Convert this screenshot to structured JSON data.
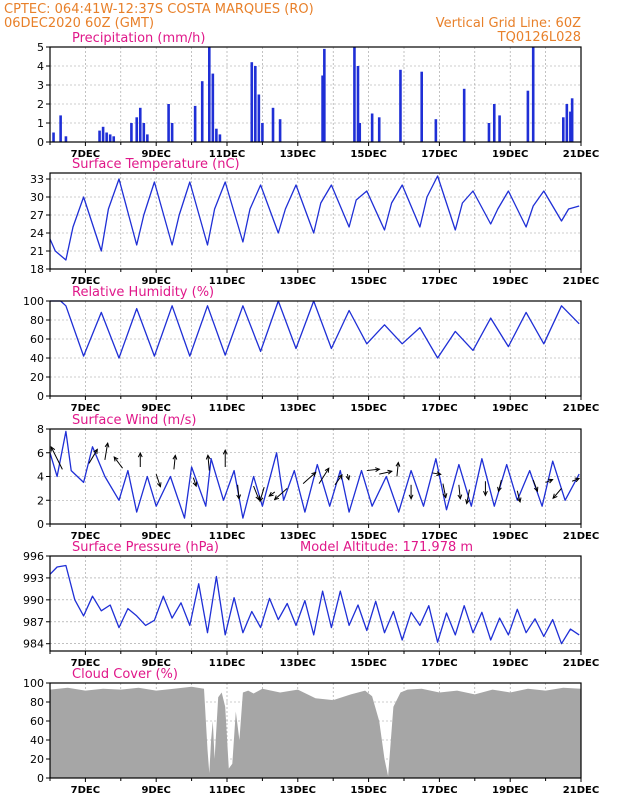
{
  "header": {
    "line1_left": "CPTEC:  064:41W-12:37S  COSTA MARQUES (RO)",
    "line2_left": "06DEC2020 60Z (GMT)",
    "line2_right": "Vertical Grid Line: 60Z",
    "line3_right": "TQ0126L028"
  },
  "colors": {
    "header_text": "#e8802a",
    "panel_title": "#e0188a",
    "line": "#1f2fd6",
    "bar": "#1f2fd6",
    "arrow": "#000000",
    "cloud_fill": "#a6a6a6"
  },
  "chart_data": [
    {
      "type": "bar",
      "title": "Precipitation (mm/h)",
      "ylim": [
        0,
        5
      ],
      "yticks": [
        0,
        1,
        2,
        3,
        4,
        5
      ],
      "xticks": [
        "7DEC",
        "9DEC",
        "11DEC",
        "13DEC",
        "15DEC",
        "17DEC",
        "19DEC",
        "21DEC"
      ],
      "grid": true,
      "series": [
        {
          "x": [
            6.1,
            6.3,
            6.45,
            7.4,
            7.5,
            7.6,
            7.7,
            7.8,
            8.3,
            8.45,
            8.55,
            8.65,
            8.75,
            9.35,
            9.45,
            10.1,
            10.3,
            10.5,
            10.6,
            10.7,
            10.8,
            11.7,
            11.8,
            11.9,
            12.0,
            12.3,
            12.5,
            13.7,
            13.75,
            14.6,
            14.7,
            14.75,
            15.1,
            15.3,
            15.9,
            16.5,
            16.9,
            17.7,
            18.4,
            18.55,
            18.7,
            19.5,
            19.65,
            20.5,
            20.6,
            20.7,
            20.75
          ],
          "values": [
            0.5,
            1.4,
            0.3,
            0.6,
            0.8,
            0.5,
            0.4,
            0.3,
            1.0,
            1.3,
            1.8,
            1.0,
            0.4,
            2.0,
            1.0,
            1.9,
            3.2,
            5.0,
            3.6,
            0.7,
            0.4,
            4.2,
            4.0,
            2.5,
            1.0,
            1.8,
            1.2,
            3.5,
            4.9,
            5.0,
            4.0,
            1.0,
            1.5,
            1.3,
            3.8,
            3.7,
            1.2,
            2.8,
            1.0,
            2.0,
            1.4,
            2.7,
            5.0,
            1.3,
            2.0,
            1.6,
            2.3
          ]
        }
      ]
    },
    {
      "type": "line",
      "title": "Surface Temperature (nC)",
      "ylim": [
        18,
        34
      ],
      "yticks": [
        18,
        21,
        24,
        27,
        30,
        33
      ],
      "xticks": [
        "7DEC",
        "9DEC",
        "11DEC",
        "13DEC",
        "15DEC",
        "17DEC",
        "19DEC",
        "21DEC"
      ],
      "grid": true,
      "series": [
        {
          "x": [
            6.0,
            6.15,
            6.45,
            6.65,
            6.95,
            7.45,
            7.65,
            7.95,
            8.45,
            8.65,
            8.95,
            9.45,
            9.65,
            9.95,
            10.45,
            10.65,
            10.95,
            11.45,
            11.65,
            11.95,
            12.45,
            12.65,
            12.95,
            13.45,
            13.65,
            13.95,
            14.45,
            14.65,
            14.95,
            15.45,
            15.65,
            15.95,
            16.45,
            16.65,
            16.95,
            17.45,
            17.65,
            17.95,
            18.45,
            18.65,
            18.95,
            19.45,
            19.65,
            19.95,
            20.45,
            20.65,
            20.95
          ],
          "values": [
            23,
            21,
            19.5,
            25,
            30,
            21,
            28,
            33,
            22,
            27,
            32.5,
            22,
            27,
            32.5,
            22,
            28,
            32.5,
            22.5,
            28,
            32,
            24,
            28,
            32,
            24,
            29,
            32,
            25,
            29.5,
            31,
            24.5,
            29,
            32,
            25,
            30,
            33.5,
            24.5,
            29,
            31,
            25.5,
            28,
            31,
            25,
            28.5,
            31,
            26,
            28,
            28.5
          ]
        }
      ]
    },
    {
      "type": "line",
      "title": "Relative Humidity (%)",
      "ylim": [
        0,
        100
      ],
      "yticks": [
        0,
        20,
        40,
        60,
        80,
        100
      ],
      "xticks": [
        "7DEC",
        "9DEC",
        "11DEC",
        "13DEC",
        "15DEC",
        "17DEC",
        "19DEC",
        "21DEC"
      ],
      "grid": true,
      "series": [
        {
          "x": [
            6.0,
            6.3,
            6.45,
            6.95,
            7.45,
            7.95,
            8.45,
            8.95,
            9.45,
            9.95,
            10.45,
            10.95,
            11.45,
            11.95,
            12.45,
            12.95,
            13.45,
            13.95,
            14.45,
            14.95,
            15.45,
            15.95,
            16.45,
            16.95,
            17.45,
            17.95,
            18.45,
            18.95,
            19.45,
            19.95,
            20.45,
            20.95
          ],
          "values": [
            100,
            100,
            95,
            42,
            88,
            40,
            92,
            42,
            95,
            42,
            95,
            43,
            95,
            47,
            100,
            50,
            100,
            50,
            90,
            55,
            75,
            55,
            72,
            40,
            68,
            48,
            82,
            52,
            88,
            55,
            95,
            76
          ]
        }
      ]
    },
    {
      "type": "line",
      "title": "Surface Wind (m/s)",
      "ylim": [
        0,
        8
      ],
      "yticks": [
        0,
        2,
        4,
        6,
        8
      ],
      "xticks": [
        "7DEC",
        "9DEC",
        "11DEC",
        "13DEC",
        "15DEC",
        "17DEC",
        "19DEC",
        "21DEC"
      ],
      "grid": true,
      "series": [
        {
          "x": [
            6.0,
            6.2,
            6.45,
            6.6,
            6.95,
            7.2,
            7.55,
            7.95,
            8.2,
            8.45,
            8.75,
            9.0,
            9.4,
            9.8,
            10.0,
            10.4,
            10.55,
            10.9,
            11.2,
            11.45,
            11.75,
            12.0,
            12.4,
            12.6,
            12.9,
            13.2,
            13.55,
            13.9,
            14.2,
            14.45,
            14.8,
            15.1,
            15.5,
            15.85,
            16.2,
            16.55,
            16.9,
            17.2,
            17.55,
            17.9,
            18.2,
            18.55,
            18.9,
            19.2,
            19.55,
            19.9,
            20.2,
            20.55,
            20.95
          ],
          "values": [
            6,
            4,
            7.8,
            4.5,
            3.5,
            6.5,
            4,
            2,
            4.5,
            1,
            4,
            1.5,
            4,
            0.5,
            4.8,
            1.5,
            5.5,
            2,
            4.5,
            0.5,
            4,
            1.5,
            6,
            2,
            4.5,
            1,
            5,
            1.5,
            4.5,
            1,
            4.5,
            1.5,
            4,
            1,
            4.5,
            1.5,
            5.5,
            1.2,
            5,
            1.5,
            5.5,
            1.5,
            5,
            2,
            4.5,
            1.5,
            5.3,
            2,
            4.2
          ]
        }
      ],
      "arrows": [
        {
          "x": 6.35,
          "y": 4.6,
          "u": -0.8,
          "v": 1.6
        },
        {
          "x": 7.1,
          "y": 5.1,
          "u": 0.6,
          "v": 1.0
        },
        {
          "x": 7.55,
          "y": 5.4,
          "u": 0.2,
          "v": 1.2
        },
        {
          "x": 8.05,
          "y": 4.7,
          "u": -0.6,
          "v": 0.8
        },
        {
          "x": 8.55,
          "y": 4.8,
          "u": 0.0,
          "v": 1.0
        },
        {
          "x": 9.0,
          "y": 4.2,
          "u": 0.3,
          "v": -0.9
        },
        {
          "x": 9.5,
          "y": 4.6,
          "u": 0.1,
          "v": 1.0
        },
        {
          "x": 10.05,
          "y": 3.9,
          "u": 0.2,
          "v": -0.6
        },
        {
          "x": 10.5,
          "y": 4.5,
          "u": -0.1,
          "v": 1.1
        },
        {
          "x": 10.95,
          "y": 4.8,
          "u": 0.0,
          "v": 1.2
        },
        {
          "x": 11.3,
          "y": 3.3,
          "u": 0.1,
          "v": -1.0
        },
        {
          "x": 11.75,
          "y": 3.2,
          "u": 0.4,
          "v": -1.0
        },
        {
          "x": 12.05,
          "y": 3.1,
          "u": -0.3,
          "v": -1.0
        },
        {
          "x": 12.35,
          "y": 2.7,
          "u": -0.4,
          "v": -0.3
        },
        {
          "x": 12.7,
          "y": 3.0,
          "u": -0.9,
          "v": -0.8
        },
        {
          "x": 13.15,
          "y": 3.4,
          "u": 0.9,
          "v": 0.8
        },
        {
          "x": 13.6,
          "y": 3.4,
          "u": 0.7,
          "v": 1.1
        },
        {
          "x": 14.05,
          "y": 3.3,
          "u": 0.5,
          "v": 0.7
        },
        {
          "x": 14.4,
          "y": 4.2,
          "u": 0.1,
          "v": -0.4
        },
        {
          "x": 14.95,
          "y": 4.5,
          "u": 0.9,
          "v": 0.1
        },
        {
          "x": 15.3,
          "y": 4.2,
          "u": 0.9,
          "v": 0.2
        },
        {
          "x": 15.8,
          "y": 4.0,
          "u": 0.1,
          "v": 1.0
        },
        {
          "x": 16.2,
          "y": 3.3,
          "u": 0.0,
          "v": -1.0
        },
        {
          "x": 16.8,
          "y": 4.3,
          "u": 0.6,
          "v": -0.1
        },
        {
          "x": 17.1,
          "y": 3.4,
          "u": 0.2,
          "v": -1.0
        },
        {
          "x": 17.55,
          "y": 3.3,
          "u": 0.1,
          "v": -1.0
        },
        {
          "x": 17.85,
          "y": 2.9,
          "u": -0.2,
          "v": -1.0
        },
        {
          "x": 18.3,
          "y": 3.6,
          "u": 0.0,
          "v": -1.0
        },
        {
          "x": 18.75,
          "y": 3.7,
          "u": -0.2,
          "v": -0.8
        },
        {
          "x": 19.2,
          "y": 2.8,
          "u": 0.2,
          "v": -0.8
        },
        {
          "x": 19.65,
          "y": 3.7,
          "u": 0.3,
          "v": -0.8
        },
        {
          "x": 20.0,
          "y": 3.5,
          "u": 0.5,
          "v": 0.2
        },
        {
          "x": 20.45,
          "y": 3.0,
          "u": -0.6,
          "v": -0.7
        },
        {
          "x": 20.75,
          "y": 3.6,
          "u": 0.5,
          "v": 0.2
        }
      ]
    },
    {
      "type": "line",
      "title": "Surface Pressure (hPa)",
      "annotation": "Model Altitude: 171.978 m",
      "ylim": [
        983,
        996
      ],
      "yticks": [
        984,
        987,
        990,
        993,
        996
      ],
      "xticks": [
        "7DEC",
        "9DEC",
        "11DEC",
        "13DEC",
        "15DEC",
        "17DEC",
        "19DEC",
        "21DEC"
      ],
      "grid": true,
      "series": [
        {
          "x": [
            6.0,
            6.2,
            6.45,
            6.7,
            6.95,
            7.2,
            7.45,
            7.7,
            7.95,
            8.2,
            8.45,
            8.7,
            8.95,
            9.2,
            9.45,
            9.7,
            9.95,
            10.2,
            10.45,
            10.7,
            10.95,
            11.2,
            11.45,
            11.7,
            11.95,
            12.2,
            12.45,
            12.7,
            12.95,
            13.2,
            13.45,
            13.7,
            13.95,
            14.2,
            14.45,
            14.7,
            14.95,
            15.2,
            15.45,
            15.7,
            15.95,
            16.2,
            16.45,
            16.7,
            16.95,
            17.2,
            17.45,
            17.7,
            17.95,
            18.2,
            18.45,
            18.7,
            18.95,
            19.2,
            19.45,
            19.7,
            19.95,
            20.2,
            20.45,
            20.7,
            20.95
          ],
          "values": [
            993.5,
            994.5,
            994.7,
            990,
            987.8,
            990.5,
            988.5,
            989.3,
            986.2,
            988.8,
            987.8,
            986.5,
            987.2,
            990.5,
            987.5,
            989.6,
            986.5,
            992.2,
            985.5,
            993.2,
            985.2,
            990.3,
            985.5,
            988.4,
            986.2,
            990.2,
            987.3,
            989.5,
            986.5,
            989.9,
            985.2,
            991.2,
            986.2,
            991.2,
            986.5,
            989.3,
            985.8,
            989.8,
            985.5,
            988.4,
            984.5,
            988.3,
            986.5,
            989.2,
            984.2,
            988.2,
            985.2,
            989.2,
            985.5,
            988.3,
            984.5,
            987.5,
            985.2,
            988.7,
            985.5,
            987.4,
            985.0,
            987.3,
            984.0,
            986.0,
            985.2
          ]
        }
      ]
    },
    {
      "type": "area",
      "title": "Cloud Cover (%)",
      "ylim": [
        0,
        100
      ],
      "yticks": [
        0,
        20,
        40,
        60,
        80,
        100
      ],
      "xticks": [
        "7DEC",
        "9DEC",
        "11DEC",
        "13DEC",
        "15DEC",
        "17DEC",
        "19DEC",
        "21DEC"
      ],
      "grid": true,
      "series": [
        {
          "x": [
            6.0,
            6.5,
            7.0,
            7.5,
            8.0,
            8.5,
            9.0,
            9.5,
            10.0,
            10.35,
            10.45,
            10.5,
            10.55,
            10.6,
            10.65,
            10.75,
            10.85,
            10.95,
            11.05,
            11.15,
            11.25,
            11.35,
            11.45,
            11.6,
            11.75,
            12.0,
            12.5,
            13.0,
            13.5,
            14.0,
            14.5,
            14.9,
            15.1,
            15.3,
            15.45,
            15.55,
            15.7,
            15.9,
            16.1,
            16.5,
            17.0,
            17.5,
            18.0,
            18.5,
            19.0,
            19.5,
            20.0,
            20.5,
            21.0
          ],
          "values": [
            93,
            95,
            92,
            94,
            93,
            95,
            92,
            94,
            96,
            94,
            30,
            5,
            40,
            60,
            20,
            85,
            90,
            75,
            10,
            15,
            70,
            40,
            90,
            92,
            89,
            94,
            90,
            93,
            84,
            82,
            88,
            92,
            86,
            60,
            20,
            2,
            75,
            90,
            93,
            94,
            90,
            92,
            88,
            93,
            90,
            94,
            92,
            95,
            94
          ]
        }
      ]
    }
  ]
}
